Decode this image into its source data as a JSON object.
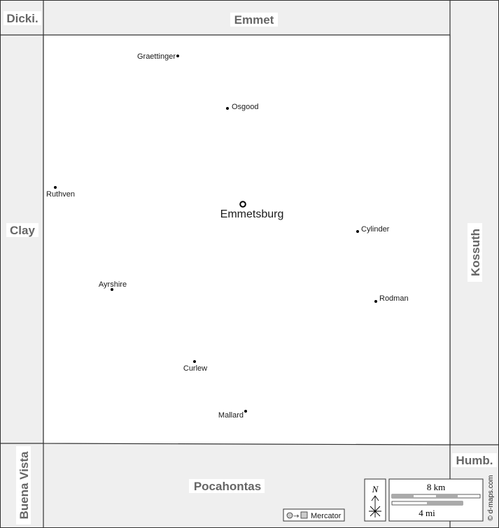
{
  "colors": {
    "neighbor_fill": "#efefef",
    "county_fill": "#ffffff",
    "border": "#333333",
    "label_fill": "#666666",
    "label_bg": "#ffffff"
  },
  "neighbors": {
    "dickinson": "Dicki.",
    "emmet": "Emmet",
    "clay": "Clay",
    "kossuth": "Kossuth",
    "buena_vista": "Buena Vista",
    "pocahontas": "Pocahontas",
    "humboldt": "Humb."
  },
  "towns": [
    {
      "name": "Graettinger",
      "type": "town"
    },
    {
      "name": "Osgood",
      "type": "town"
    },
    {
      "name": "Ruthven",
      "type": "town"
    },
    {
      "name": "Emmetsburg",
      "type": "county-seat"
    },
    {
      "name": "Cylinder",
      "type": "town"
    },
    {
      "name": "Ayrshire",
      "type": "town"
    },
    {
      "name": "Rodman",
      "type": "town"
    },
    {
      "name": "Curlew",
      "type": "town"
    },
    {
      "name": "Mallard",
      "type": "town"
    }
  ],
  "scale": {
    "km_label": "8 km",
    "mi_label": "4 mi"
  },
  "north_label": "N",
  "projection_label": "Mercator",
  "credit": "© d-maps.com"
}
